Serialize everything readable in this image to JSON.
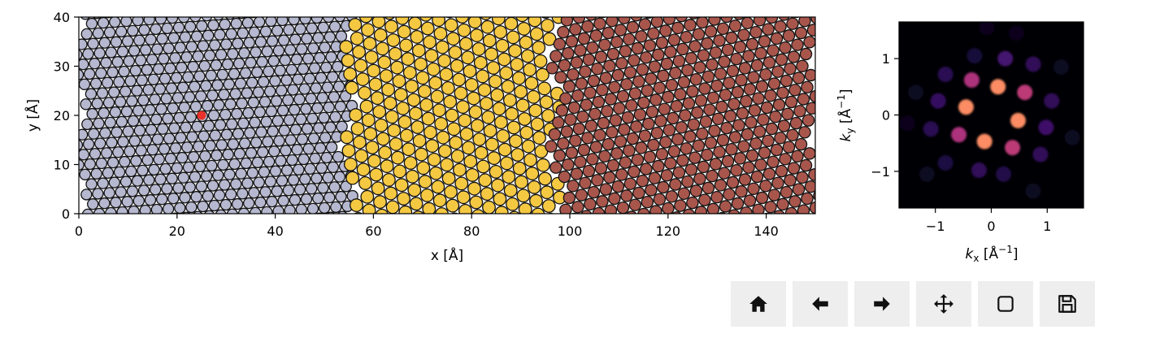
{
  "chart_data": [
    {
      "type": "scatter",
      "title": "",
      "xlabel": "x [Å]",
      "ylabel": "y [Å]",
      "xlim": [
        0,
        150
      ],
      "ylim": [
        0,
        40
      ],
      "xticks": [
        "0",
        "20",
        "40",
        "60",
        "80",
        "100",
        "120",
        "140"
      ],
      "yticks": [
        "0",
        "10",
        "20",
        "30",
        "40"
      ],
      "grains": [
        {
          "x_start": 0,
          "x_end": 55,
          "color": "#b6b8d0",
          "spacing": 2.35,
          "rotation_deg": 4
        },
        {
          "x_start": 55,
          "x_end": 97,
          "color": "#f5c842",
          "spacing": 2.8,
          "rotation_deg": -22
        },
        {
          "x_start": 97,
          "x_end": 150,
          "color": "#a8564c",
          "spacing": 2.55,
          "rotation_deg": 13
        }
      ],
      "highlight": {
        "x": 25,
        "y": 20,
        "color": "#e8322a"
      },
      "edge_color": "#111111"
    },
    {
      "type": "heatmap",
      "title": "",
      "xlabel": "k_x [Å⁻¹]",
      "ylabel": "k_y [Å⁻¹]",
      "xlim": [
        -1.65,
        1.65
      ],
      "ylim": [
        -1.65,
        1.65
      ],
      "xticks": [
        "−1",
        "0",
        "1"
      ],
      "yticks": [
        "−1",
        "0",
        "1"
      ],
      "colormap": "magma",
      "spots": [
        {
          "kx": 0.12,
          "ky": 0.5,
          "intensity": 0.95
        },
        {
          "kx": 0.48,
          "ky": -0.1,
          "intensity": 0.95
        },
        {
          "kx": -0.45,
          "ky": 0.14,
          "intensity": 0.95
        },
        {
          "kx": -0.12,
          "ky": -0.47,
          "intensity": 0.95
        },
        {
          "kx": 0.6,
          "ky": 0.4,
          "intensity": 0.65
        },
        {
          "kx": -0.35,
          "ky": 0.62,
          "intensity": 0.6
        },
        {
          "kx": -0.58,
          "ky": -0.35,
          "intensity": 0.6
        },
        {
          "kx": 0.38,
          "ky": -0.58,
          "intensity": 0.65
        },
        {
          "kx": 0.25,
          "ky": 1.0,
          "intensity": 0.28
        },
        {
          "kx": 0.75,
          "ky": 0.9,
          "intensity": 0.22
        },
        {
          "kx": 1.08,
          "ky": 0.25,
          "intensity": 0.22
        },
        {
          "kx": 0.98,
          "ky": -0.22,
          "intensity": 0.26
        },
        {
          "kx": 0.88,
          "ky": -0.7,
          "intensity": 0.22
        },
        {
          "kx": 0.22,
          "ky": -1.05,
          "intensity": 0.18
        },
        {
          "kx": -0.22,
          "ky": -0.98,
          "intensity": 0.22
        },
        {
          "kx": -0.82,
          "ky": -0.85,
          "intensity": 0.16
        },
        {
          "kx": -1.08,
          "ky": -0.25,
          "intensity": 0.2
        },
        {
          "kx": -0.95,
          "ky": 0.25,
          "intensity": 0.24
        },
        {
          "kx": -0.82,
          "ky": 0.72,
          "intensity": 0.2
        },
        {
          "kx": -0.3,
          "ky": 1.05,
          "intensity": 0.14
        },
        {
          "kx": 1.25,
          "ky": 0.85,
          "intensity": 0.08
        },
        {
          "kx": -1.35,
          "ky": 0.4,
          "intensity": 0.07
        },
        {
          "kx": -1.15,
          "ky": -1.05,
          "intensity": 0.07
        },
        {
          "kx": 0.75,
          "ky": -1.35,
          "intensity": 0.08
        },
        {
          "kx": -0.08,
          "ky": 1.55,
          "intensity": 0.06
        },
        {
          "kx": 1.45,
          "ky": -0.4,
          "intensity": 0.07
        },
        {
          "kx": -1.5,
          "ky": -0.15,
          "intensity": 0.06
        },
        {
          "kx": 0.45,
          "ky": 1.45,
          "intensity": 0.06
        }
      ]
    }
  ],
  "toolbar": {
    "buttons": [
      {
        "name": "home-button",
        "icon": "home-icon"
      },
      {
        "name": "back-button",
        "icon": "arrow-left-icon"
      },
      {
        "name": "forward-button",
        "icon": "arrow-right-icon"
      },
      {
        "name": "pan-button",
        "icon": "move-icon"
      },
      {
        "name": "zoom-button",
        "icon": "zoom-rect-icon"
      },
      {
        "name": "save-button",
        "icon": "save-icon"
      }
    ]
  }
}
